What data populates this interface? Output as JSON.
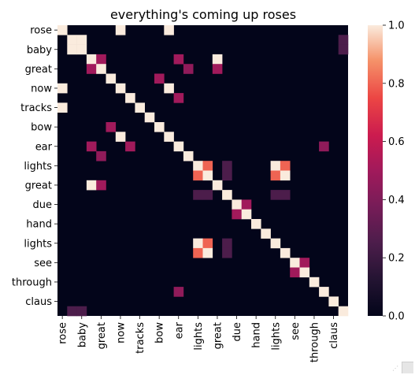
{
  "chart_data": {
    "type": "heatmap",
    "title": "everything's coming up roses",
    "xlabel": "",
    "ylabel": "",
    "y_tick_labels": [
      "rose",
      "baby",
      "great",
      "now",
      "tracks",
      "bow",
      "ear",
      "lights",
      "great",
      "due",
      "hand",
      "lights",
      "see",
      "through",
      "claus"
    ],
    "x_tick_labels": [
      "rose",
      "baby",
      "great",
      "now",
      "tracks",
      "bow",
      "ear",
      "lights",
      "great",
      "due",
      "hand",
      "lights",
      "see",
      "through",
      "claus"
    ],
    "labeled_every": 2,
    "n": 30,
    "cells": [
      [
        0,
        0,
        1.0
      ],
      [
        0,
        6,
        1.0
      ],
      [
        0,
        11,
        1.0
      ],
      [
        1,
        1,
        1.0
      ],
      [
        1,
        2,
        1.0
      ],
      [
        2,
        1,
        1.0
      ],
      [
        2,
        2,
        1.0
      ],
      [
        1,
        29,
        0.25
      ],
      [
        2,
        29,
        0.25
      ],
      [
        29,
        1,
        0.25
      ],
      [
        29,
        2,
        0.25
      ],
      [
        3,
        3,
        1.0
      ],
      [
        3,
        4,
        0.5
      ],
      [
        4,
        3,
        0.5
      ],
      [
        4,
        4,
        1.0
      ],
      [
        3,
        12,
        0.5
      ],
      [
        12,
        3,
        0.5
      ],
      [
        3,
        16,
        1.0
      ],
      [
        16,
        3,
        1.0
      ],
      [
        4,
        16,
        0.5
      ],
      [
        16,
        4,
        0.5
      ],
      [
        4,
        13,
        0.45
      ],
      [
        13,
        4,
        0.45
      ],
      [
        5,
        5,
        1.0
      ],
      [
        6,
        0,
        1.0
      ],
      [
        6,
        6,
        1.0
      ],
      [
        5,
        10,
        0.5
      ],
      [
        10,
        5,
        0.5
      ],
      [
        6,
        11,
        1.0
      ],
      [
        11,
        6,
        1.0
      ],
      [
        7,
        7,
        1.0
      ],
      [
        8,
        8,
        1.0
      ],
      [
        9,
        9,
        1.0
      ],
      [
        10,
        10,
        1.0
      ],
      [
        11,
        11,
        1.0
      ],
      [
        7,
        12,
        0.5
      ],
      [
        12,
        7,
        0.5
      ],
      [
        8,
        0,
        1.0
      ],
      [
        12,
        12,
        1.0
      ],
      [
        13,
        13,
        1.0
      ],
      [
        14,
        14,
        1.0
      ],
      [
        14,
        15,
        0.8
      ],
      [
        15,
        14,
        0.8
      ],
      [
        15,
        15,
        1.0
      ],
      [
        14,
        17,
        0.25
      ],
      [
        15,
        17,
        0.25
      ],
      [
        17,
        14,
        0.25
      ],
      [
        17,
        15,
        0.25
      ],
      [
        14,
        22,
        1.0
      ],
      [
        14,
        23,
        0.8
      ],
      [
        15,
        22,
        0.8
      ],
      [
        15,
        23,
        1.0
      ],
      [
        22,
        14,
        1.0
      ],
      [
        22,
        15,
        0.8
      ],
      [
        23,
        14,
        0.8
      ],
      [
        23,
        15,
        1.0
      ],
      [
        16,
        16,
        1.0
      ],
      [
        17,
        17,
        1.0
      ],
      [
        17,
        22,
        0.25
      ],
      [
        17,
        23,
        0.25
      ],
      [
        22,
        17,
        0.25
      ],
      [
        23,
        17,
        0.25
      ],
      [
        18,
        18,
        1.0
      ],
      [
        18,
        19,
        0.5
      ],
      [
        19,
        18,
        0.5
      ],
      [
        19,
        19,
        1.0
      ],
      [
        20,
        20,
        1.0
      ],
      [
        21,
        21,
        1.0
      ],
      [
        22,
        22,
        1.0
      ],
      [
        23,
        23,
        1.0
      ],
      [
        24,
        24,
        1.0
      ],
      [
        24,
        25,
        0.5
      ],
      [
        25,
        24,
        0.5
      ],
      [
        25,
        25,
        1.0
      ],
      [
        26,
        26,
        1.0
      ],
      [
        27,
        27,
        1.0
      ],
      [
        28,
        28,
        1.0
      ],
      [
        29,
        29,
        1.0
      ],
      [
        12,
        27,
        0.45
      ],
      [
        27,
        12,
        0.45
      ]
    ],
    "colorbar": {
      "min": 0.0,
      "max": 1.0,
      "ticks": [
        "0.0",
        "0.2",
        "0.4",
        "0.6",
        "0.8",
        "1.0"
      ]
    }
  }
}
